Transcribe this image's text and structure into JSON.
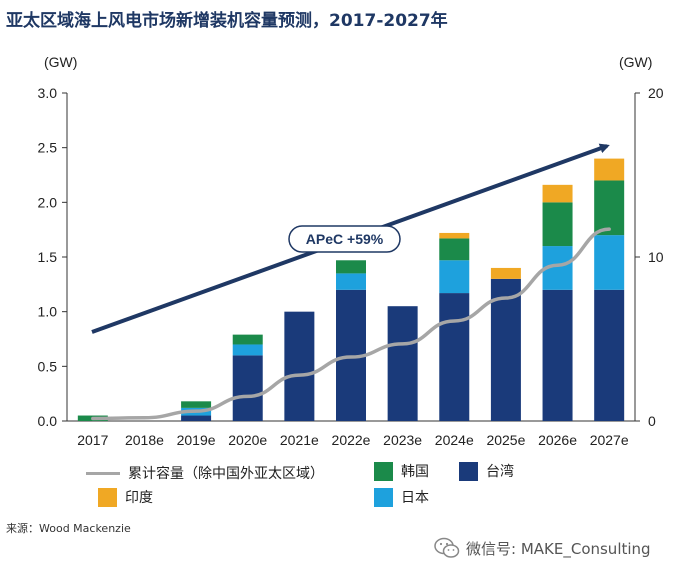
{
  "title": "亚太区域海上风电市场新增装机容量预测，2017-2027年",
  "source": "来源：Wood Mackenzie",
  "watermark": "微信号: MAKE_Consulting",
  "chart_data": {
    "type": "bar",
    "stacked": true,
    "categories": [
      "2017",
      "2018e",
      "2019e",
      "2020e",
      "2021e",
      "2022e",
      "2023e",
      "2024e",
      "2025e",
      "2026e",
      "2027e"
    ],
    "left_axis": {
      "label": "(GW)",
      "ylim": [
        0,
        3.0
      ],
      "ticks": [
        "0.0",
        "0.5",
        "1.0",
        "1.5",
        "2.0",
        "2.5",
        "3.0"
      ]
    },
    "right_axis": {
      "label": "(GW)",
      "ylim": [
        0,
        20
      ],
      "ticks": [
        "0",
        "10",
        "20"
      ]
    },
    "series": [
      {
        "name": "台湾",
        "color": "#1a3a7a",
        "values": [
          0,
          0,
          0.05,
          0.6,
          1.0,
          1.2,
          1.05,
          1.17,
          1.3,
          1.2,
          1.2
        ]
      },
      {
        "name": "日本",
        "color": "#1ea1dd",
        "values": [
          0,
          0,
          0.07,
          0.1,
          0,
          0.15,
          0,
          0.3,
          0,
          0.4,
          0.5
        ]
      },
      {
        "name": "韩国",
        "color": "#1b8a4a",
        "values": [
          0.05,
          0,
          0.06,
          0.09,
          0,
          0.12,
          0,
          0.2,
          0,
          0.4,
          0.5
        ]
      },
      {
        "name": "印度",
        "color": "#f0a824",
        "values": [
          0,
          0,
          0,
          0,
          0,
          0,
          0,
          0.05,
          0.1,
          0.16,
          0.2
        ]
      }
    ],
    "cumulative_line": {
      "name": "累计容量（除中国外亚太区域）",
      "color": "#a6a6a6",
      "axis": "right",
      "values": [
        0.15,
        0.2,
        0.6,
        1.5,
        2.8,
        3.9,
        4.7,
        6.1,
        7.5,
        9.5,
        11.7
      ]
    },
    "annotation": {
      "text": "APeC +59%"
    }
  },
  "legend": [
    {
      "kind": "line",
      "label": "累计容量（除中国外亚太区域）",
      "color": "#a6a6a6"
    },
    {
      "kind": "box",
      "label": "韩国",
      "color": "#1b8a4a"
    },
    {
      "kind": "box",
      "label": "台湾",
      "color": "#1a3a7a"
    },
    {
      "kind": "box",
      "label": "印度",
      "color": "#f0a824"
    },
    {
      "kind": "box",
      "label": "日本",
      "color": "#1ea1dd"
    }
  ]
}
